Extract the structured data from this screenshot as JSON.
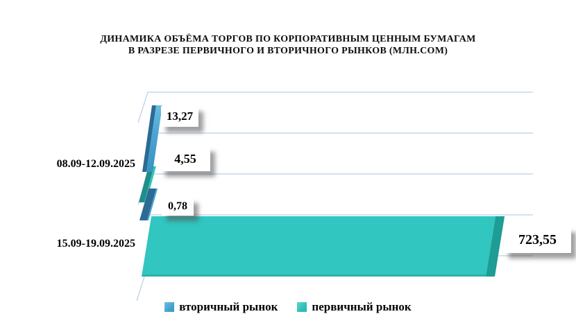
{
  "chart_data": {
    "type": "bar",
    "orientation": "horizontal",
    "style": "3d",
    "title_lines": [
      "ДИНАМИКА ОБЪЁМА ТОРГОВ ПО КОРПОРАТИВНЫМ ЦЕННЫМ БУМАГАМ",
      "В РАЗРЕЗЕ ПЕРВИЧНОГО И ВТОРИЧНОГО РЫНКОВ  (МЛН.СОМ)"
    ],
    "units": "млн.сом",
    "categories": [
      "08.09-12.09.2025",
      "15.09-19.09.2025"
    ],
    "series": [
      {
        "name": "вторичный рынок",
        "color": "#45a6d2",
        "dark_color": "#2b6b94",
        "values": [
          13.27,
          0.78
        ],
        "value_labels": [
          "13,27",
          "0,78"
        ]
      },
      {
        "name": "первичный рынок",
        "color": "#31c6bf",
        "dark_color": "#1f8e88",
        "values": [
          4.55,
          723.55
        ],
        "value_labels": [
          "4,55",
          "723,55"
        ]
      }
    ],
    "value_axis": {
      "min": 0,
      "max": 723.55
    },
    "grid": true,
    "gridline_color": "#c5d7ec",
    "legend_position": "bottom"
  },
  "legend": {
    "items": [
      {
        "label": "вторичный рынок",
        "color": "#45a6d2"
      },
      {
        "label": "первичный рынок",
        "color": "#31c6bf"
      }
    ]
  }
}
